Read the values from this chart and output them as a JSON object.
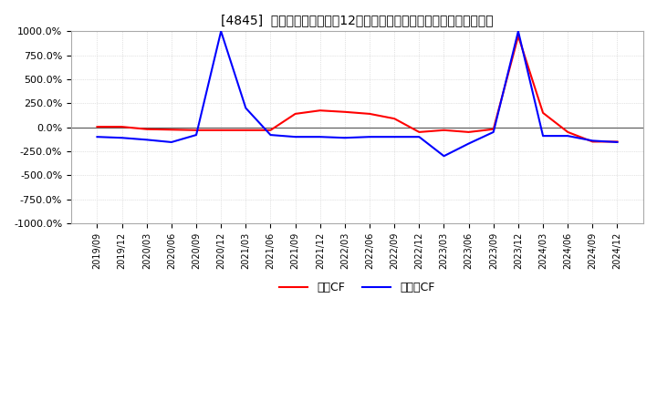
{
  "title": "[4845]  キャッシュフローの12か月移動合計の対前年同期増減率の推移",
  "ylim": [
    -1000,
    1000
  ],
  "yticks": [
    -1000,
    -750,
    -500,
    -250,
    0,
    250,
    500,
    750,
    1000
  ],
  "legend_labels": [
    "営業CF",
    "フリーCF"
  ],
  "line_colors": [
    "#ff0000",
    "#0000ff"
  ],
  "background_color": "#ffffff",
  "grid_color": "#c8c8c8",
  "x_labels": [
    "2019/09",
    "2019/12",
    "2020/03",
    "2020/06",
    "2020/09",
    "2020/12",
    "2021/03",
    "2021/06",
    "2021/09",
    "2021/12",
    "2022/03",
    "2022/06",
    "2022/09",
    "2022/12",
    "2023/03",
    "2023/06",
    "2023/09",
    "2023/12",
    "2024/03",
    "2024/06",
    "2024/09",
    "2024/12"
  ],
  "operating_cf": [
    5,
    5,
    -20,
    -25,
    -30,
    -30,
    -30,
    -30,
    140,
    175,
    160,
    140,
    90,
    -50,
    -30,
    -50,
    -20,
    950,
    150,
    -50,
    -150,
    -150
  ],
  "free_cf": [
    -100,
    -110,
    -130,
    -155,
    -80,
    1000,
    200,
    -80,
    -100,
    -100,
    -110,
    -100,
    -100,
    -100,
    -300,
    -170,
    -50,
    1000,
    -90,
    -90,
    -140,
    -155
  ]
}
